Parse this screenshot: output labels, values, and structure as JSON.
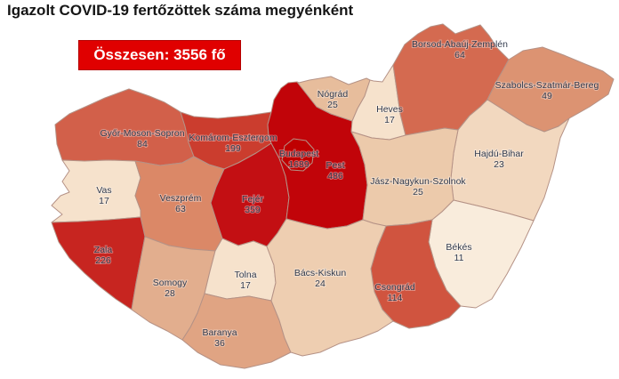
{
  "title": "Igazolt COVID-19 fertőzöttek száma megyénként",
  "total_badge": "Összesen: 3556 fő",
  "colors": {
    "badge_bg": "#e00000",
    "badge_text": "#ffffff",
    "county_border": "#b59286",
    "label_text": "#333c4f",
    "title_text": "#151515",
    "background": "#ffffff"
  },
  "chart_data": {
    "type": "choropleth",
    "region": "Hungary, megyék (counties)",
    "title": "Igazolt COVID-19 fertőzöttek száma megyénként",
    "total_label": "Összesen: 3556 fő",
    "total_value": 3556,
    "unit": "fő",
    "regions": [
      {
        "id": "budapest",
        "name": "Budapest",
        "value": 1689,
        "color": "#bf0000"
      },
      {
        "id": "pest",
        "name": "Pest",
        "value": 486,
        "color": "#c10409"
      },
      {
        "id": "fejer",
        "name": "Fejér",
        "value": 359,
        "color": "#c30f13"
      },
      {
        "id": "zala",
        "name": "Zala",
        "value": 226,
        "color": "#c72520"
      },
      {
        "id": "komarom",
        "name": "Komárom-Esztergom",
        "value": 199,
        "color": "#cb3d2e"
      },
      {
        "id": "csongrad",
        "name": "Csongrád",
        "value": 114,
        "color": "#d0543f"
      },
      {
        "id": "gyms",
        "name": "Győr-Moson-Sopron",
        "value": 84,
        "color": "#d2604a"
      },
      {
        "id": "borsod",
        "name": "Borsod-Abaúj-Zemplén",
        "value": 64,
        "color": "#d46a50"
      },
      {
        "id": "veszprem",
        "name": "Veszprém",
        "value": 63,
        "color": "#db8867"
      },
      {
        "id": "szabolcs",
        "name": "Szabolcs-Szatmár-Bereg",
        "value": 49,
        "color": "#dc9372"
      },
      {
        "id": "baranya",
        "name": "Baranya",
        "value": 36,
        "color": "#e0a483"
      },
      {
        "id": "somogy",
        "name": "Somogy",
        "value": 28,
        "color": "#e2ae8e"
      },
      {
        "id": "nograd",
        "name": "Nógrád",
        "value": 25,
        "color": "#e7bd9c"
      },
      {
        "id": "jnsz",
        "name": "Jász-Nagykun-Szolnok",
        "value": 25,
        "color": "#eccaab"
      },
      {
        "id": "bacs",
        "name": "Bács-Kiskun",
        "value": 24,
        "color": "#eeceb1"
      },
      {
        "id": "hajdu",
        "name": "Hajdú-Bihar",
        "value": 23,
        "color": "#f2d8bf"
      },
      {
        "id": "heves",
        "name": "Heves",
        "value": 17,
        "color": "#f6e2cc"
      },
      {
        "id": "tolna",
        "name": "Tolna",
        "value": 17,
        "color": "#f6e2cc"
      },
      {
        "id": "vas",
        "name": "Vas",
        "value": 17,
        "color": "#f6e2cc"
      },
      {
        "id": "bekes",
        "name": "Békés",
        "value": 11,
        "color": "#f9ecdc"
      }
    ]
  }
}
